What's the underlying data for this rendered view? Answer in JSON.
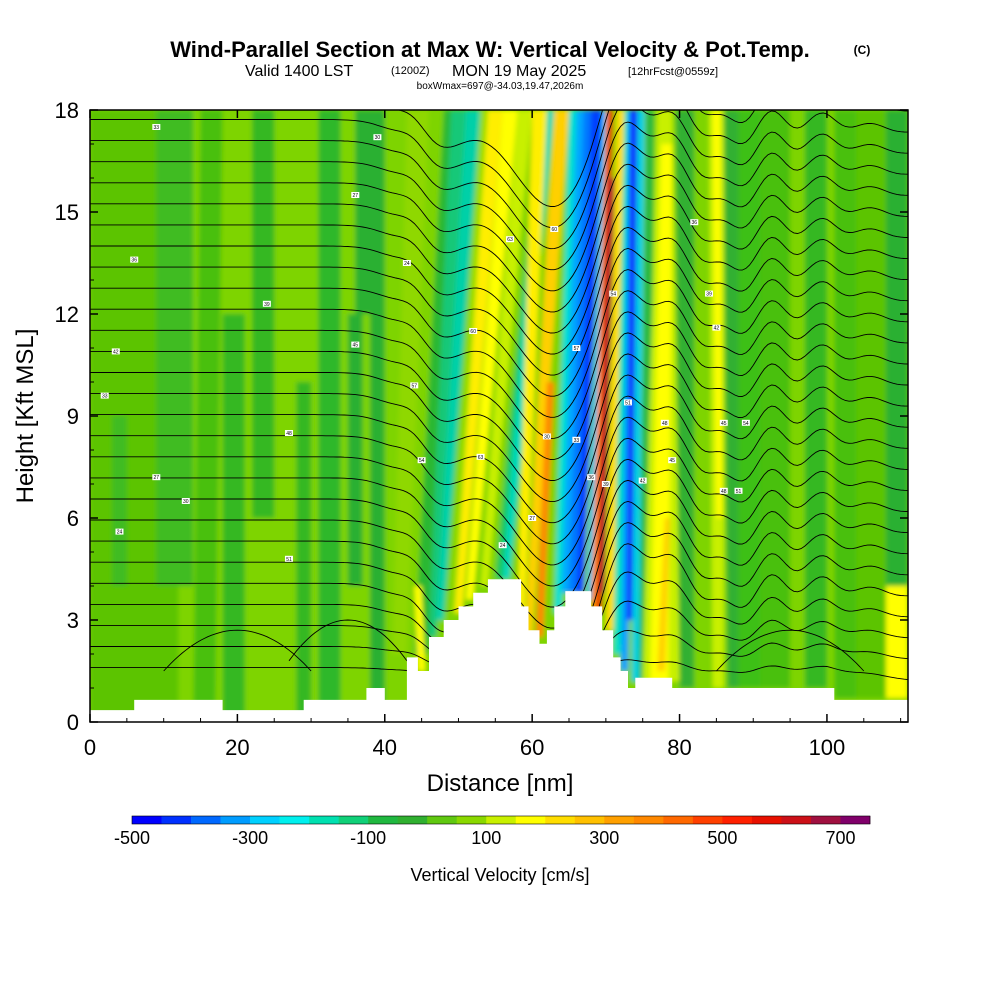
{
  "title": {
    "main": "Wind-Parallel Section at Max W: Vertical Velocity & Pot.Temp.",
    "corner": "(C)",
    "valid_prefix": "Valid 1400 LST",
    "utc": "(1200Z)",
    "date": "MON 19 May 2025",
    "forecast": "[12hrFcst@0559z]",
    "info": "boxWmax=697@-34.03,19.47,2026m"
  },
  "chart_data": {
    "type": "heatmap",
    "title": "Wind-Parallel Section at Max W: Vertical Velocity & Pot.Temp.",
    "xlabel": "Distance [nm]",
    "ylabel": "Height [Kft MSL]",
    "xlim": [
      0,
      111
    ],
    "ylim": [
      0,
      18
    ],
    "x_ticks": [
      0,
      20,
      40,
      60,
      80,
      100
    ],
    "y_ticks": [
      0,
      3,
      6,
      9,
      12,
      15,
      18
    ],
    "terrain": [
      [
        0,
        0.35
      ],
      [
        6,
        0.35
      ],
      [
        6,
        0.65
      ],
      [
        18,
        0.65
      ],
      [
        18,
        0.35
      ],
      [
        29,
        0.35
      ],
      [
        29,
        0.65
      ],
      [
        37.5,
        0.65
      ],
      [
        37.5,
        1.0
      ],
      [
        40,
        1.0
      ],
      [
        40,
        0.65
      ],
      [
        43,
        0.65
      ],
      [
        43,
        1.9
      ],
      [
        44.5,
        1.9
      ],
      [
        44.5,
        1.5
      ],
      [
        46,
        1.5
      ],
      [
        46,
        2.5
      ],
      [
        48,
        2.5
      ],
      [
        48,
        3.0
      ],
      [
        50,
        3.0
      ],
      [
        50,
        3.4
      ],
      [
        52,
        3.4
      ],
      [
        52,
        3.8
      ],
      [
        54,
        3.8
      ],
      [
        54,
        4.2
      ],
      [
        58.5,
        4.2
      ],
      [
        58.5,
        3.4
      ],
      [
        59.5,
        3.4
      ],
      [
        59.5,
        2.7
      ],
      [
        61,
        2.7
      ],
      [
        61,
        2.3
      ],
      [
        62,
        2.3
      ],
      [
        62,
        2.7
      ],
      [
        63,
        2.7
      ],
      [
        63,
        3.4
      ],
      [
        64.5,
        3.4
      ],
      [
        64.5,
        3.85
      ],
      [
        68,
        3.85
      ],
      [
        68,
        3.4
      ],
      [
        69.5,
        3.4
      ],
      [
        69.5,
        2.7
      ],
      [
        71,
        2.7
      ],
      [
        71,
        1.9
      ],
      [
        72,
        1.9
      ],
      [
        72,
        1.5
      ],
      [
        73,
        1.5
      ],
      [
        73,
        1.0
      ],
      [
        74,
        1.0
      ],
      [
        74,
        1.3
      ],
      [
        79,
        1.3
      ],
      [
        79,
        1.0
      ],
      [
        101,
        1.0
      ],
      [
        101,
        0.65
      ],
      [
        111,
        0.65
      ]
    ],
    "max_w": {
      "value": 697,
      "units": "cm/s",
      "lat": -34.03,
      "lon": 19.47,
      "height_m": 2026
    },
    "theta_label_values": [
      "24",
      "27",
      "30",
      "33",
      "36",
      "39",
      "42",
      "45",
      "48",
      "51",
      "54",
      "57",
      "60",
      "63"
    ],
    "colorbar": {
      "label": "Vertical Velocity [cm/s]",
      "levels": [
        -500,
        -450,
        -400,
        -350,
        -300,
        -250,
        -200,
        -150,
        -100,
        -50,
        0,
        50,
        100,
        150,
        200,
        250,
        300,
        350,
        400,
        450,
        500,
        550,
        600,
        650,
        700,
        750
      ],
      "tick_labels": [
        "-500",
        "-300",
        "-100",
        "100",
        "300",
        "500",
        "700"
      ],
      "colors": [
        "#0000ff",
        "#0030ff",
        "#0068ff",
        "#009cff",
        "#00d0ff",
        "#00f0ee",
        "#00e0b0",
        "#10d078",
        "#20b840",
        "#30b030",
        "#60c810",
        "#8ad800",
        "#c8f000",
        "#ffff00",
        "#ffdd00",
        "#ffc000",
        "#ffa000",
        "#ff8800",
        "#ff6800",
        "#ff4000",
        "#ff2000",
        "#e81000",
        "#cc1018",
        "#a01040",
        "#80006a"
      ]
    }
  }
}
